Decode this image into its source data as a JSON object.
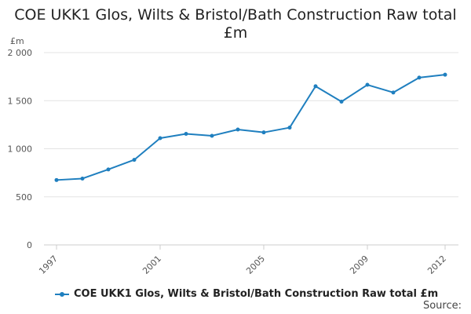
{
  "title": "COE UKK1 Glos, Wilts & Bristol/Bath Construction Raw total £m",
  "source_label": "Source:",
  "chart_data": {
    "type": "line",
    "title": "COE UKK1 Glos, Wilts & Bristol/Bath Construction Raw total £m",
    "ylabel": "£m",
    "xlabel": "",
    "ylim": [
      0,
      2000
    ],
    "yticks": [
      0,
      500,
      1000,
      1500,
      2000
    ],
    "ytick_labels": [
      "0",
      "500",
      "1 000",
      "1 500",
      "2 000"
    ],
    "xticks": [
      1997,
      2001,
      2005,
      2009,
      2012
    ],
    "xtick_labels": [
      "1997",
      "2001",
      "2005",
      "2009",
      "2012"
    ],
    "grid": "horizontal",
    "legend_position": "bottom",
    "color": "#1f7fbf",
    "x": [
      1997,
      1998,
      1999,
      2000,
      2001,
      2002,
      2003,
      2004,
      2005,
      2006,
      2007,
      2008,
      2009,
      2010,
      2011,
      2012
    ],
    "series": [
      {
        "name": "COE UKK1 Glos, Wilts & Bristol/Bath Construction Raw total £m",
        "values": [
          675,
          690,
          785,
          885,
          1110,
          1155,
          1135,
          1200,
          1170,
          1220,
          1650,
          1490,
          1665,
          1585,
          1740,
          1770
        ]
      }
    ]
  }
}
